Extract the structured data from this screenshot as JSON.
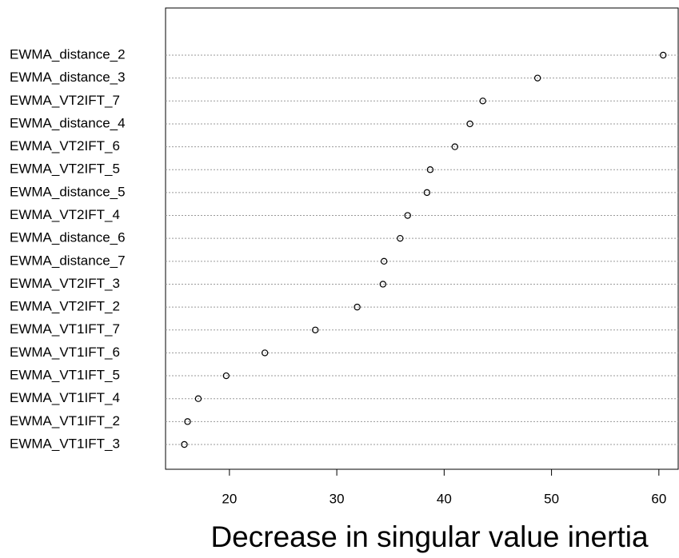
{
  "chart_data": {
    "type": "dot",
    "xlabel": "Decrease in singular value inertia",
    "categories": [
      "EWMA_distance_2",
      "EWMA_distance_3",
      "EWMA_VT2IFT_7",
      "EWMA_distance_4",
      "EWMA_VT2IFT_6",
      "EWMA_VT2IFT_5",
      "EWMA_distance_5",
      "EWMA_VT2IFT_4",
      "EWMA_distance_6",
      "EWMA_distance_7",
      "EWMA_VT2IFT_3",
      "EWMA_VT2IFT_2",
      "EWMA_VT1IFT_7",
      "EWMA_VT1IFT_6",
      "EWMA_VT1IFT_5",
      "EWMA_VT1IFT_4",
      "EWMA_VT1IFT_2",
      "EWMA_VT1IFT_3"
    ],
    "values": [
      60.4,
      48.7,
      43.6,
      42.4,
      41.0,
      38.7,
      38.4,
      36.6,
      35.9,
      34.4,
      34.3,
      31.9,
      28.0,
      23.3,
      19.7,
      17.1,
      16.1,
      15.8
    ],
    "xlim": [
      14.05,
      61.8
    ],
    "xticks": [
      20,
      30,
      40,
      50,
      60
    ],
    "grid": true
  }
}
